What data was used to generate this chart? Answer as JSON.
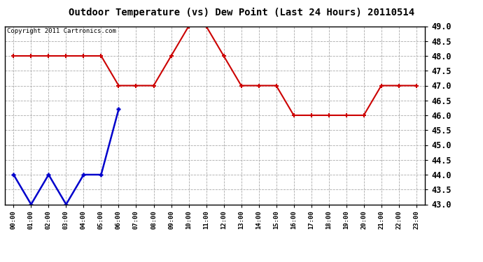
{
  "title": "Outdoor Temperature (vs) Dew Point (Last 24 Hours) 20110514",
  "copyright": "Copyright 2011 Cartronics.com",
  "x_labels": [
    "00:00",
    "01:00",
    "02:00",
    "03:00",
    "04:00",
    "05:00",
    "06:00",
    "07:00",
    "08:00",
    "09:00",
    "10:00",
    "11:00",
    "12:00",
    "13:00",
    "14:00",
    "15:00",
    "16:00",
    "17:00",
    "18:00",
    "19:00",
    "20:00",
    "21:00",
    "22:00",
    "23:00"
  ],
  "temp_values": [
    48.0,
    48.0,
    48.0,
    48.0,
    48.0,
    48.0,
    47.0,
    47.0,
    47.0,
    48.0,
    49.0,
    49.0,
    48.0,
    47.0,
    47.0,
    47.0,
    46.0,
    46.0,
    46.0,
    46.0,
    46.0,
    47.0,
    47.0,
    47.0
  ],
  "dew_x": [
    0,
    1,
    2,
    3,
    4,
    5,
    6
  ],
  "dew_y": [
    44.0,
    43.0,
    44.0,
    43.0,
    44.0,
    44.0,
    46.2
  ],
  "ylim": [
    43.0,
    49.0
  ],
  "yticks": [
    43.0,
    43.5,
    44.0,
    44.5,
    45.0,
    45.5,
    46.0,
    46.5,
    47.0,
    47.5,
    48.0,
    48.5,
    49.0
  ],
  "temp_color": "#cc0000",
  "dew_color": "#0000cc",
  "grid_color": "#aaaaaa",
  "bg_color": "#ffffff",
  "title_fontsize": 10,
  "copyright_fontsize": 6.5,
  "tick_fontsize": 8.5,
  "xtick_fontsize": 6.5
}
